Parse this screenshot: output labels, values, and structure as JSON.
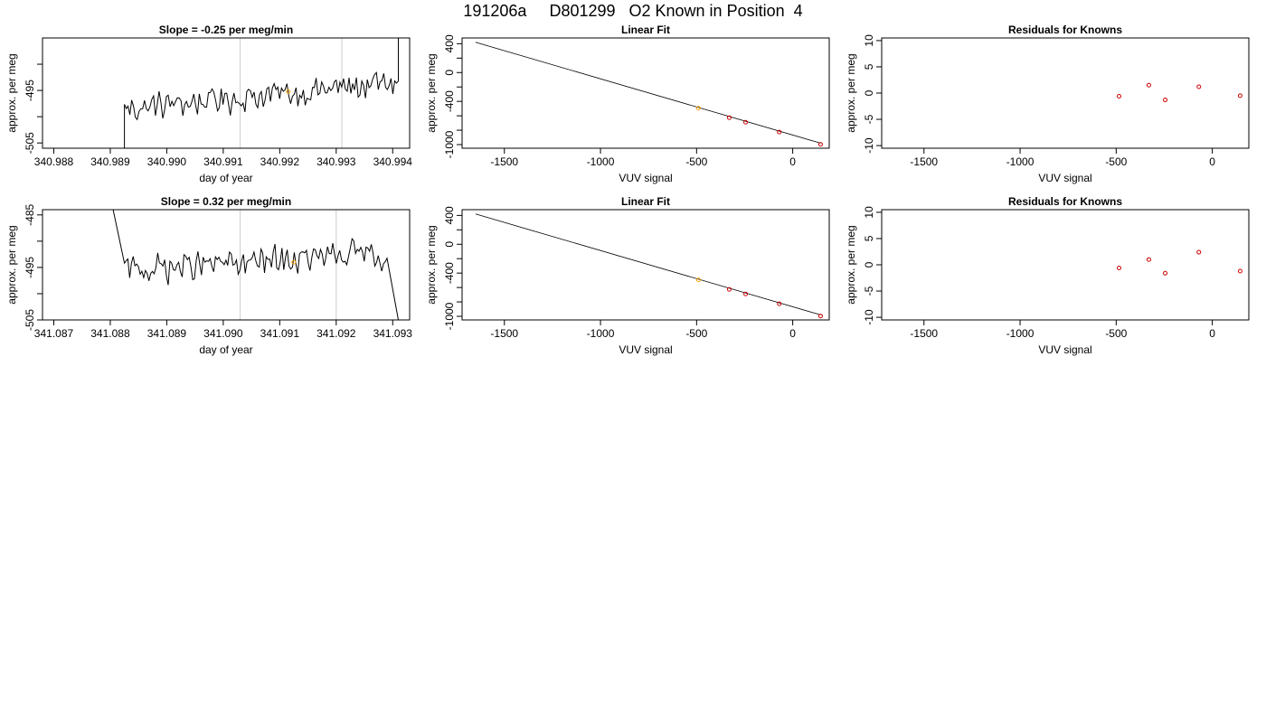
{
  "page": {
    "title": "191206a     D801299   O2 Known in Position  4"
  },
  "chart_data": [
    {
      "type": "line",
      "title": "Slope =  -0.25  per meg/min",
      "xlabel": "day of year",
      "ylabel": "approx. per meg",
      "xlim": [
        340.9878,
        340.9943
      ],
      "ylim": [
        -506,
        -485
      ],
      "x_ticks": [
        "340.988",
        "340.989",
        "340.990",
        "340.991",
        "340.992",
        "340.993",
        "340.994"
      ],
      "x_tick_values": [
        340.988,
        340.989,
        340.99,
        340.991,
        340.992,
        340.993,
        340.994
      ],
      "y_ticks": [
        "-505",
        "-495"
      ],
      "y_tick_values": [
        -505,
        -495
      ],
      "y_minor_ticks": [
        -500,
        -490
      ],
      "vlines": [
        340.9913,
        340.9931
      ],
      "series_start": {
        "x": 340.98925,
        "y": -506
      },
      "series_end": {
        "x": 340.9941,
        "y": -485
      },
      "series_range": [
        340.98925,
        340.9941
      ],
      "series_level": {
        "start": -498.5,
        "end": -493.5
      },
      "series_amplitude": 2.0,
      "marker": {
        "x": 340.99215,
        "y": -495.2,
        "color": "#ffa500"
      }
    },
    {
      "type": "scatter",
      "title": "Linear Fit",
      "xlabel": "VUV signal",
      "ylabel": "approx. per meg",
      "xlim": [
        -1720,
        190
      ],
      "ylim": [
        -1050,
        480
      ],
      "x_ticks": [
        "-1500",
        "-1000",
        "-500",
        "0"
      ],
      "x_tick_values": [
        -1500,
        -1000,
        -500,
        0
      ],
      "y_ticks": [
        "-1000",
        "-400",
        "0",
        "400"
      ],
      "y_tick_values": [
        -1000,
        -400,
        0,
        400
      ],
      "y_minor_ticks": [
        -800,
        -600,
        -200,
        200
      ],
      "fit_line": [
        [
          -1650,
          420
        ],
        [
          145,
          -980
        ]
      ],
      "points": [
        {
          "x": -490,
          "y": -495,
          "color": "#ffa500"
        },
        {
          "x": -330,
          "y": -626,
          "color": "#cc0000"
        },
        {
          "x": -245,
          "y": -690,
          "color": "#cc0000"
        },
        {
          "x": -70,
          "y": -826,
          "color": "#cc0000"
        },
        {
          "x": 145,
          "y": -996,
          "color": "#cc0000"
        }
      ]
    },
    {
      "type": "scatter",
      "title": "Residuals for Knowns",
      "xlabel": "VUV signal",
      "ylabel": "approx. per meg",
      "xlim": [
        -1720,
        190
      ],
      "ylim": [
        -10.5,
        10.5
      ],
      "x_ticks": [
        "-1500",
        "-1000",
        "-500",
        "0"
      ],
      "x_tick_values": [
        -1500,
        -1000,
        -500,
        0
      ],
      "y_ticks": [
        "-10",
        "-5",
        "0",
        "5",
        "10"
      ],
      "y_tick_values": [
        -10,
        -5,
        0,
        5,
        10
      ],
      "points": [
        {
          "x": -485,
          "y": -0.6,
          "color": "#cc0000"
        },
        {
          "x": -330,
          "y": 1.5,
          "color": "#cc0000"
        },
        {
          "x": -245,
          "y": -1.3,
          "color": "#cc0000"
        },
        {
          "x": -70,
          "y": 1.2,
          "color": "#cc0000"
        },
        {
          "x": 145,
          "y": -0.5,
          "color": "#cc0000"
        }
      ]
    },
    {
      "type": "line",
      "title": "Slope =  0.32  per meg/min",
      "xlabel": "day of year",
      "ylabel": "approx. per meg",
      "xlim": [
        341.0868,
        341.0933
      ],
      "ylim": [
        -505,
        -484
      ],
      "x_ticks": [
        "341.087",
        "341.088",
        "341.089",
        "341.090",
        "341.091",
        "341.092",
        "341.093"
      ],
      "x_tick_values": [
        341.087,
        341.088,
        341.089,
        341.09,
        341.091,
        341.092,
        341.093
      ],
      "y_ticks": [
        "-505",
        "-495",
        "-485"
      ],
      "y_tick_values": [
        -505,
        -495,
        -485
      ],
      "y_minor_ticks": [
        -500,
        -490
      ],
      "vlines": [
        341.0903,
        341.092
      ],
      "series_start": {
        "x": 341.08805,
        "y": -484
      },
      "series_end": {
        "x": 341.0931,
        "y": -505
      },
      "series_range": [
        341.08825,
        341.0929
      ],
      "series_level": {
        "start": -495.5,
        "end": -492.5
      },
      "series_amplitude": 2.0,
      "marker": {
        "x": 341.09125,
        "y": -494.0,
        "color": "#ffa500"
      }
    },
    {
      "type": "scatter",
      "title": "Linear Fit",
      "xlabel": "VUV signal",
      "ylabel": "approx. per meg",
      "xlim": [
        -1720,
        190
      ],
      "ylim": [
        -1050,
        480
      ],
      "x_ticks": [
        "-1500",
        "-1000",
        "-500",
        "0"
      ],
      "x_tick_values": [
        -1500,
        -1000,
        -500,
        0
      ],
      "y_ticks": [
        "-1000",
        "-400",
        "0",
        "400"
      ],
      "y_tick_values": [
        -1000,
        -400,
        0,
        400
      ],
      "y_minor_ticks": [
        -800,
        -600,
        -200,
        200
      ],
      "fit_line": [
        [
          -1650,
          420
        ],
        [
          145,
          -980
        ]
      ],
      "points": [
        {
          "x": -490,
          "y": -495,
          "color": "#ffa500"
        },
        {
          "x": -330,
          "y": -626,
          "color": "#cc0000"
        },
        {
          "x": -245,
          "y": -690,
          "color": "#cc0000"
        },
        {
          "x": -70,
          "y": -826,
          "color": "#cc0000"
        },
        {
          "x": 145,
          "y": -996,
          "color": "#cc0000"
        }
      ]
    },
    {
      "type": "scatter",
      "title": "Residuals for Knowns",
      "xlabel": "VUV signal",
      "ylabel": "approx. per meg",
      "xlim": [
        -1720,
        190
      ],
      "ylim": [
        -10.5,
        10.5
      ],
      "x_ticks": [
        "-1500",
        "-1000",
        "-500",
        "0"
      ],
      "x_tick_values": [
        -1500,
        -1000,
        -500,
        0
      ],
      "y_ticks": [
        "-10",
        "-5",
        "0",
        "5",
        "10"
      ],
      "y_tick_values": [
        -10,
        -5,
        0,
        5,
        10
      ],
      "points": [
        {
          "x": -485,
          "y": -0.6,
          "color": "#cc0000"
        },
        {
          "x": -330,
          "y": 1.0,
          "color": "#cc0000"
        },
        {
          "x": -245,
          "y": -1.6,
          "color": "#cc0000"
        },
        {
          "x": -70,
          "y": 2.4,
          "color": "#cc0000"
        },
        {
          "x": 145,
          "y": -1.2,
          "color": "#cc0000"
        }
      ]
    }
  ]
}
